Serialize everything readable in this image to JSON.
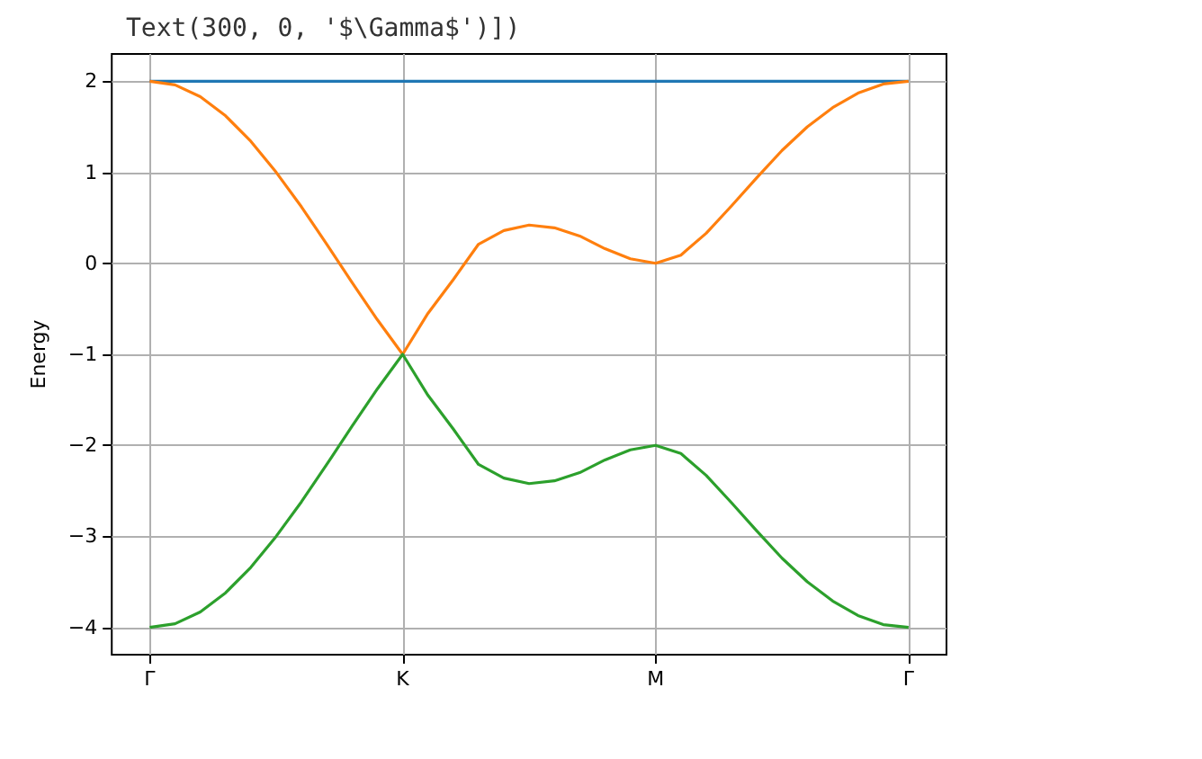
{
  "chart_data": {
    "type": "line",
    "ylabel": "Energy",
    "annotations": [
      "Text(300, 0, '$\\Gamma$')])"
    ],
    "categories": [
      "Γ",
      null,
      null,
      null,
      null,
      null,
      null,
      null,
      null,
      null,
      "K",
      null,
      null,
      null,
      null,
      null,
      null,
      null,
      null,
      null,
      "M",
      null,
      null,
      null,
      null,
      null,
      null,
      null,
      null,
      null,
      "Γ"
    ],
    "series": [
      {
        "color": "#1f77b4",
        "values": [
          2,
          2,
          2,
          2,
          2,
          2,
          2,
          2,
          2,
          2,
          2,
          2,
          2,
          2,
          2,
          2,
          2,
          2,
          2,
          2,
          2,
          2,
          2,
          2,
          2,
          2,
          2,
          2,
          2,
          2,
          2
        ]
      },
      {
        "color": "#ff7f0e",
        "values": [
          2,
          1.96,
          1.83,
          1.62,
          1.34,
          1,
          0.62,
          0.21,
          -0.21,
          -0.62,
          -1,
          -0.55,
          -0.18,
          0.21,
          0.36,
          0.42,
          0.39,
          0.3,
          0.16,
          0.05,
          0,
          0.09,
          0.33,
          0.63,
          0.94,
          1.24,
          1.5,
          1.71,
          1.87,
          1.97,
          2
        ]
      },
      {
        "color": "#2ca02c",
        "values": [
          -4,
          -3.96,
          -3.83,
          -3.62,
          -3.34,
          -3,
          -2.62,
          -2.21,
          -1.79,
          -1.38,
          -1,
          -1.45,
          -1.82,
          -2.21,
          -2.36,
          -2.42,
          -2.39,
          -2.3,
          -2.16,
          -2.05,
          -2,
          -2.09,
          -2.33,
          -2.63,
          -2.94,
          -3.24,
          -3.5,
          -3.71,
          -3.87,
          -3.97,
          -4
        ]
      }
    ],
    "ylim": [
      -4.3,
      2.3
    ],
    "yticks": [
      -4,
      -3,
      -2,
      -1,
      0,
      1,
      2
    ],
    "grid": true,
    "marker": "none",
    "line_style": "solid"
  }
}
